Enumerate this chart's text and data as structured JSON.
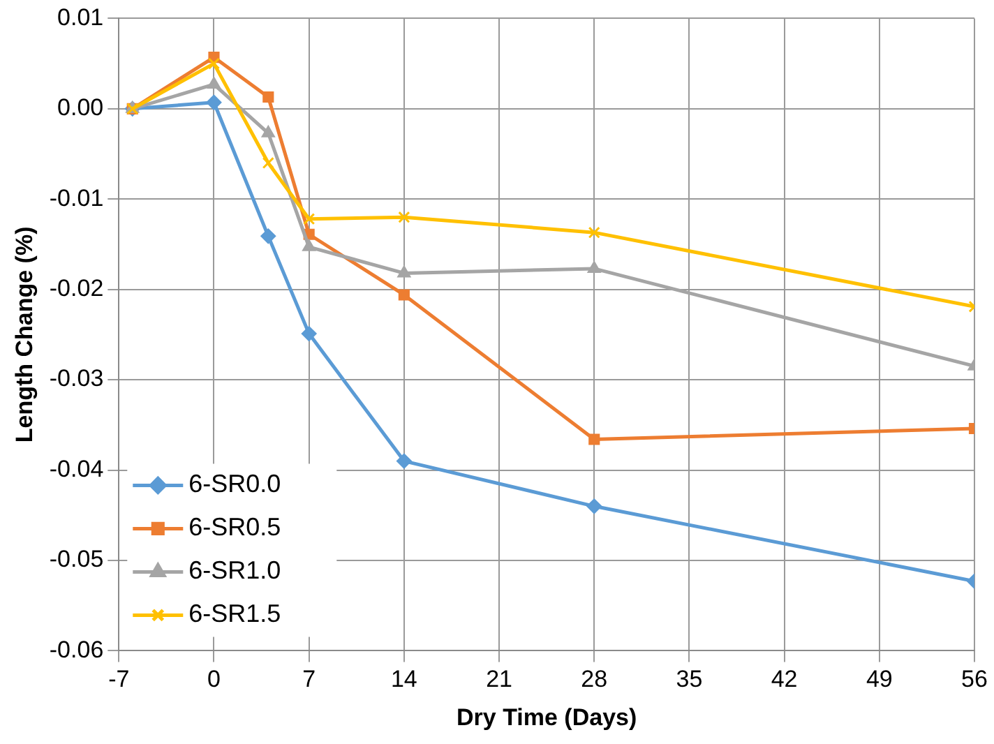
{
  "chart_data": {
    "type": "line",
    "xlabel": "Dry Time (Days)",
    "ylabel": "Length Change (%)",
    "xlim": [
      -7,
      56
    ],
    "xticks": [
      -7,
      0,
      7,
      14,
      21,
      28,
      35,
      42,
      49,
      56
    ],
    "ylim": [
      -0.06,
      0.01
    ],
    "yticks": [
      {
        "value": -0.06,
        "label": "-0.06"
      },
      {
        "value": -0.05,
        "label": "-0.05"
      },
      {
        "value": -0.04,
        "label": "-0.04"
      },
      {
        "value": -0.03,
        "label": "-0.03"
      },
      {
        "value": -0.02,
        "label": "-0.02"
      },
      {
        "value": -0.01,
        "label": "-0.01"
      },
      {
        "value": 0,
        "label": "0.00"
      },
      {
        "value": 0.01,
        "label": "0.01"
      }
    ],
    "grid": true,
    "legend": "bottom left",
    "line_style": "solid",
    "series": [
      {
        "name": "6-SR0.0",
        "color": "#5b9bd5",
        "marker": "diamond",
        "x": [
          -6,
          0,
          4,
          7,
          14,
          28,
          56
        ],
        "values": [
          0,
          0.0007,
          -0.0141,
          -0.0249,
          -0.039,
          -0.044,
          -0.0523
        ]
      },
      {
        "name": "6-SR0.5",
        "color": "#ed7d31",
        "marker": "square",
        "x": [
          -6,
          0,
          4,
          7,
          14,
          28,
          56
        ],
        "values": [
          0,
          0.0057,
          0.0013,
          -0.0139,
          -0.0206,
          -0.0366,
          -0.0354
        ]
      },
      {
        "name": "6-SR1.0",
        "color": "#a5a5a5",
        "marker": "triangle",
        "x": [
          -6,
          0,
          4,
          7,
          14,
          28,
          56
        ],
        "values": [
          0,
          0.0027,
          -0.0027,
          -0.0153,
          -0.0182,
          -0.0177,
          -0.0285
        ]
      },
      {
        "name": "6-SR1.5",
        "color": "#ffc000",
        "marker": "cross",
        "x": [
          -6,
          0,
          4,
          7,
          14,
          28,
          56
        ],
        "values": [
          0,
          0.005,
          -0.006,
          -0.0122,
          -0.012,
          -0.0137,
          -0.0219
        ]
      }
    ]
  }
}
